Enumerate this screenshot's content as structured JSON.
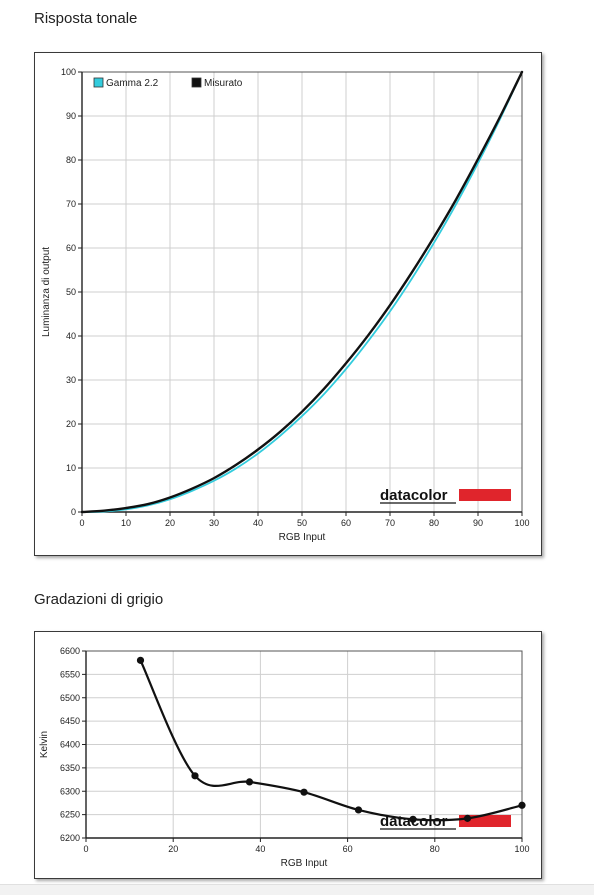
{
  "section1": {
    "title": "Risposta tonale"
  },
  "section2": {
    "title": "Gradazioni di grigio"
  },
  "chart_data": [
    {
      "type": "line",
      "xlabel": "RGB Input",
      "ylabel": "Luminanza di output",
      "xlim": [
        0,
        100
      ],
      "ylim": [
        0,
        100
      ],
      "xticks": [
        0,
        10,
        20,
        30,
        40,
        50,
        60,
        70,
        80,
        90,
        100
      ],
      "yticks": [
        0,
        10,
        20,
        30,
        40,
        50,
        60,
        70,
        80,
        90,
        100
      ],
      "grid": true,
      "legend_position": "top-left",
      "series": [
        {
          "name": "Gamma 2.2",
          "color": "#33ccdd",
          "x": [
            0,
            5,
            10,
            15,
            20,
            25,
            30,
            35,
            40,
            45,
            50,
            55,
            60,
            65,
            70,
            75,
            80,
            85,
            90,
            95,
            100
          ],
          "y": [
            0,
            0.1,
            0.6,
            1.5,
            2.9,
            4.8,
            7.1,
            9.9,
            13.3,
            17.3,
            21.8,
            26.8,
            32.5,
            38.8,
            45.6,
            53.1,
            61.2,
            69.9,
            79.3,
            89.3,
            100
          ]
        },
        {
          "name": "Misurato",
          "color": "#111111",
          "x": [
            0,
            5,
            10,
            15,
            20,
            25,
            30,
            35,
            40,
            45,
            50,
            55,
            60,
            65,
            70,
            75,
            80,
            85,
            90,
            95,
            100
          ],
          "y": [
            0,
            0.3,
            0.9,
            1.8,
            3.3,
            5.3,
            7.7,
            10.7,
            14.2,
            18.2,
            22.8,
            28.0,
            33.8,
            40.1,
            47.0,
            54.5,
            62.5,
            71.0,
            80.2,
            89.8,
            100
          ]
        }
      ],
      "watermark": "datacolor"
    },
    {
      "type": "line",
      "xlabel": "RGB Input",
      "ylabel": "Kelvin",
      "xlim": [
        0,
        100
      ],
      "ylim": [
        6200,
        6600
      ],
      "xticks": [
        0,
        20,
        40,
        60,
        80,
        100
      ],
      "yticks": [
        6200,
        6250,
        6300,
        6350,
        6400,
        6450,
        6500,
        6550,
        6600
      ],
      "grid": true,
      "series": [
        {
          "color": "#111111",
          "x": [
            12.5,
            25,
            37.5,
            50,
            62.5,
            75,
            87.5,
            100
          ],
          "y": [
            6580,
            6333,
            6320,
            6298,
            6260,
            6240,
            6242,
            6270
          ]
        }
      ],
      "watermark": "datacolor"
    }
  ]
}
